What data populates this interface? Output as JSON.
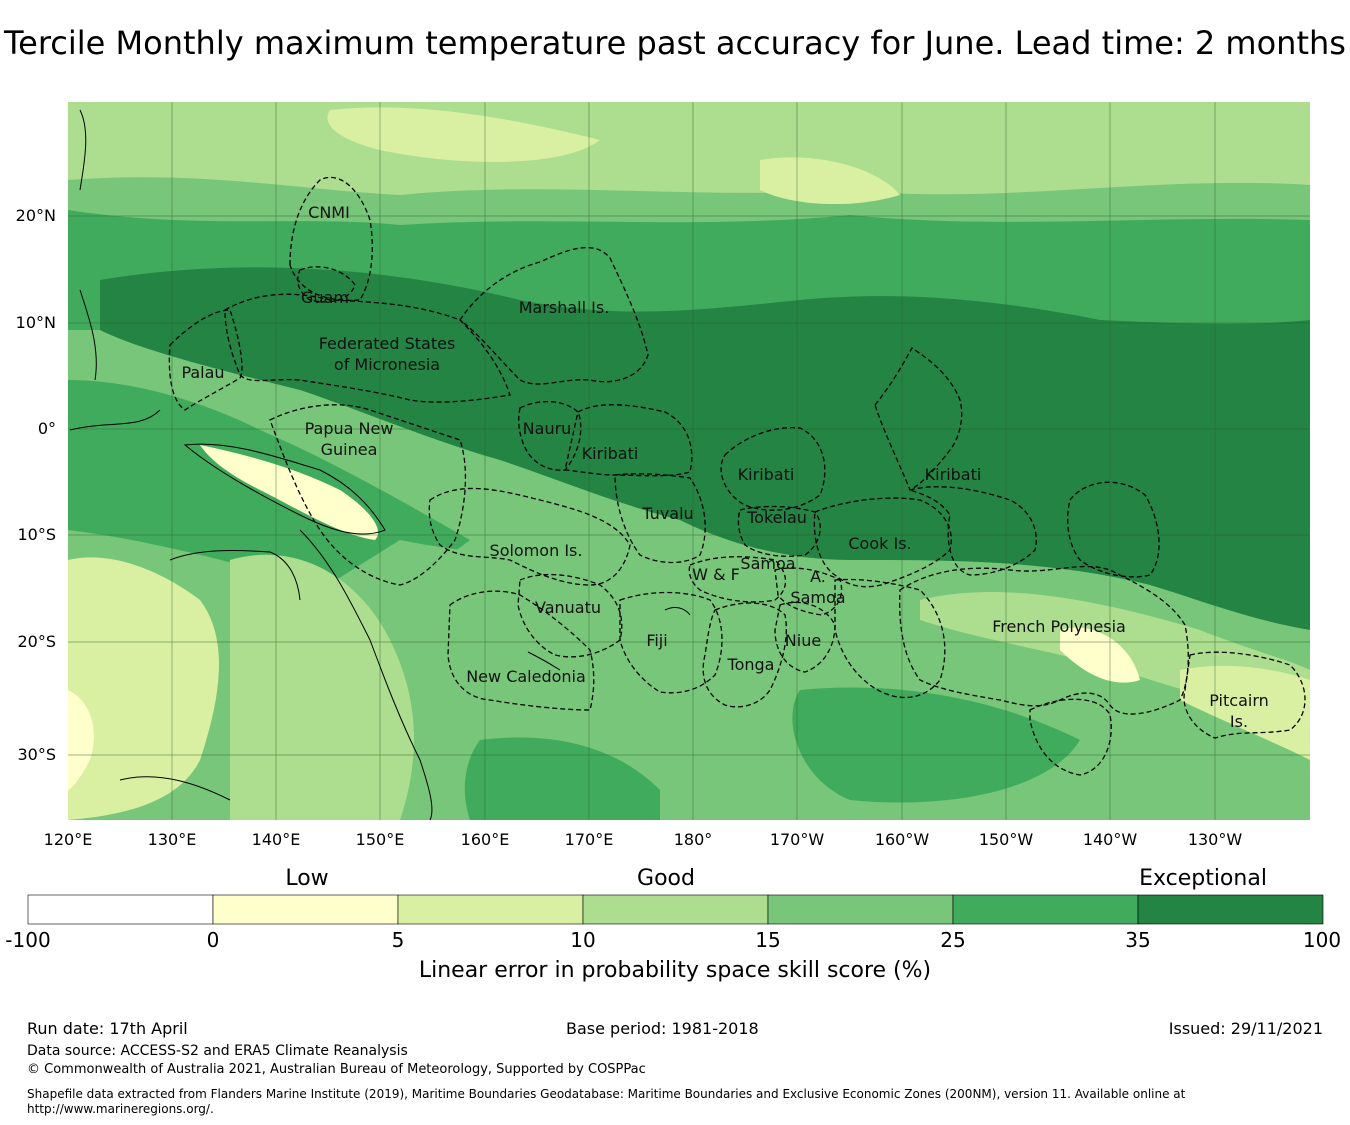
{
  "title": "Tercile Monthly maximum temperature past accuracy for June. Lead time: 2 months",
  "map": {
    "lat_labels": [
      "20°N",
      "10°N",
      "0°",
      "10°S",
      "20°S",
      "30°S"
    ],
    "lon_labels": [
      "120°E",
      "130°E",
      "140°E",
      "150°E",
      "160°E",
      "170°E",
      "180°",
      "170°W",
      "160°W",
      "150°W",
      "140°W",
      "130°W"
    ],
    "countries": [
      {
        "name": "CNMI"
      },
      {
        "name": "Guam"
      },
      {
        "name": "Marshall Is."
      },
      {
        "name": "Federated States"
      },
      {
        "name": "of Micronesia"
      },
      {
        "name": "Palau"
      },
      {
        "name": "Papua New"
      },
      {
        "name": "Guinea"
      },
      {
        "name": "Nauru"
      },
      {
        "name": "Kiribati"
      },
      {
        "name": "Kiribati"
      },
      {
        "name": "Kiribati"
      },
      {
        "name": "Tuvalu"
      },
      {
        "name": "Tokelau"
      },
      {
        "name": "Cook Is."
      },
      {
        "name": "Solomon Is."
      },
      {
        "name": "Samoa"
      },
      {
        "name": "W & F"
      },
      {
        "name": "A."
      },
      {
        "name": "Samoa"
      },
      {
        "name": "Vanuatu"
      },
      {
        "name": "Fiji"
      },
      {
        "name": "Niue"
      },
      {
        "name": "Tonga"
      },
      {
        "name": "French Polynesia"
      },
      {
        "name": "New Caledonia"
      },
      {
        "name": "Pitcairn"
      },
      {
        "name": "Is."
      }
    ]
  },
  "colorbar": {
    "categories": [
      "Low",
      "Good",
      "Exceptional"
    ],
    "ticks": [
      "-100",
      "0",
      "5",
      "10",
      "15",
      "25",
      "35",
      "100"
    ],
    "colors": [
      "#ffffff",
      "#ffffcc",
      "#d9f0a3",
      "#addd8e",
      "#78c679",
      "#41ab5d",
      "#238443"
    ],
    "caption": "Linear error in probability space skill score (%)"
  },
  "footer": {
    "run_date": "Run date: 17th April",
    "base_period": "Base period: 1981-2018",
    "issued": "Issued: 29/11/2021",
    "data_source": "Data source: ACCESS-S2 and ERA5 Climate Reanalysis",
    "copyright": "© Commonwealth of Australia 2021, Australian Bureau of Meteorology, Supported by COSPPac",
    "shapefile": "Shapefile data extracted from Flanders Marine Institute (2019), Maritime Boundaries Geodatabase: Maritime Boundaries and Exclusive Economic Zones (200NM), version 11. Available online at http://www.marineregions.org/."
  }
}
